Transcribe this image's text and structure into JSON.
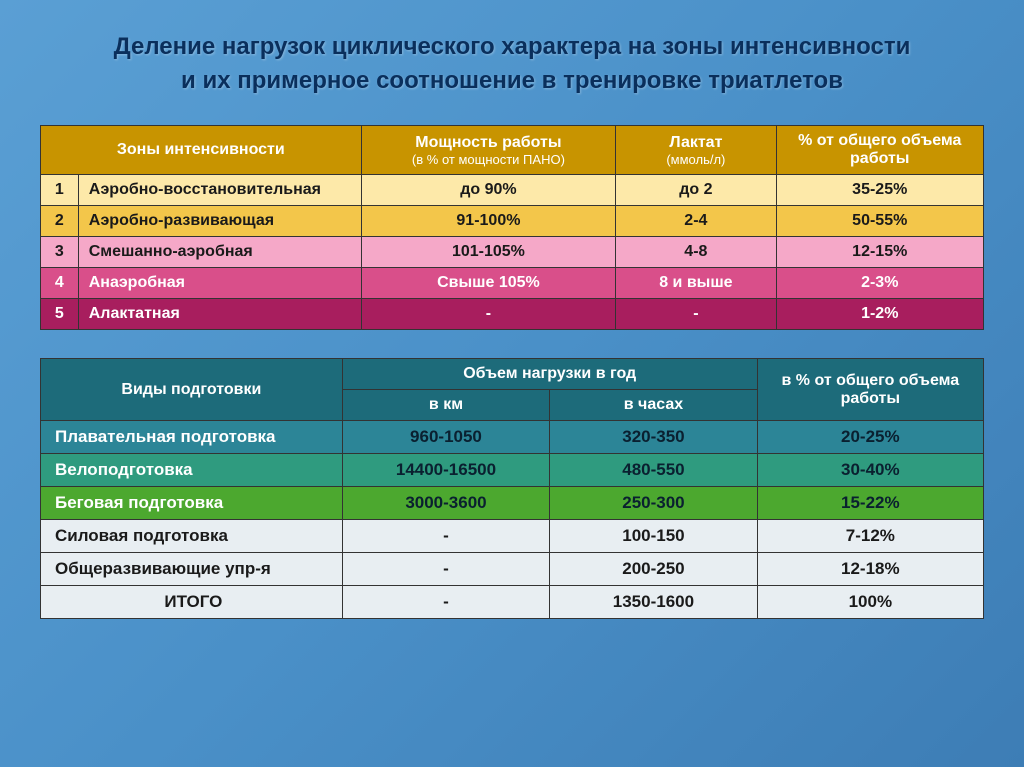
{
  "title_line1": "Деление нагрузок циклического характера на зоны интенсивности",
  "title_line2": "и их примерное соотношение в тренировке триатлетов",
  "table1": {
    "headers": {
      "zone": "Зоны интенсивности",
      "power": "Мощность работы",
      "power_sub": "(в % от мощности ПАНО)",
      "lactate": "Лактат",
      "lactate_sub": "(ммоль/л)",
      "percent": "% от общего объема работы"
    },
    "rows": [
      {
        "n": "1",
        "zone": "Аэробно-восстановительная",
        "power": "до 90%",
        "lactate": "до 2",
        "pct": "35-25%"
      },
      {
        "n": "2",
        "zone": "Аэробно-развивающая",
        "power": "91-100%",
        "lactate": "2-4",
        "pct": "50-55%"
      },
      {
        "n": "3",
        "zone": "Смешанно-аэробная",
        "power": "101-105%",
        "lactate": "4-8",
        "pct": "12-15%"
      },
      {
        "n": "4",
        "zone": "Анаэробная",
        "power": "Свыше 105%",
        "lactate": "8 и выше",
        "pct": "2-3%"
      },
      {
        "n": "5",
        "zone": "Алактатная",
        "power": "-",
        "lactate": "-",
        "pct": "1-2%"
      }
    ]
  },
  "table2": {
    "headers": {
      "type": "Виды подготовки",
      "volume": "Объем нагрузки в год",
      "km": "в км",
      "hours": "в часах",
      "percent": "в % от общего объема работы"
    },
    "rows": [
      {
        "type": "Плавательная подготовка",
        "km": "960-1050",
        "hours": "320-350",
        "pct": "20-25%"
      },
      {
        "type": "Велоподготовка",
        "km": "14400-16500",
        "hours": "480-550",
        "pct": "30-40%"
      },
      {
        "type": "Беговая подготовка",
        "km": "3000-3600",
        "hours": "250-300",
        "pct": "15-22%"
      },
      {
        "type": "Силовая подготовка",
        "km": "-",
        "hours": "100-150",
        "pct": "7-12%"
      },
      {
        "type": "Общеразвивающие упр-я",
        "km": "-",
        "hours": "200-250",
        "pct": "12-18%"
      },
      {
        "type": "ИТОГО",
        "km": "-",
        "hours": "1350-1600",
        "pct": "100%"
      }
    ]
  }
}
